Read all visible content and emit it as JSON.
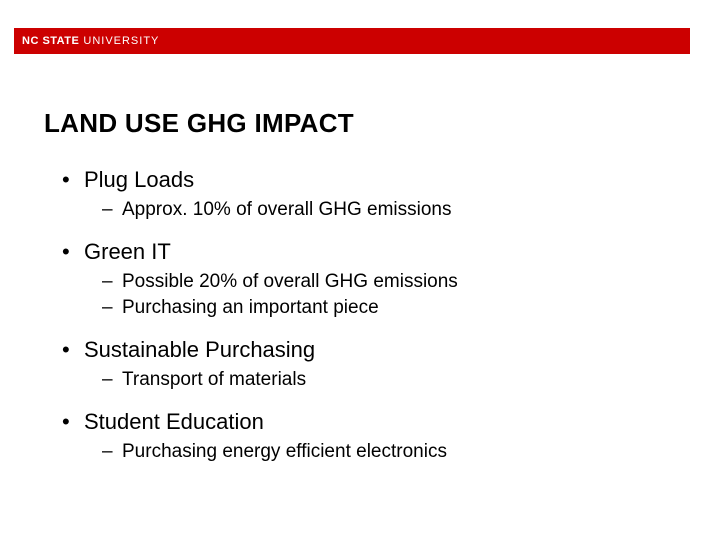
{
  "header": {
    "logo_bold": "NC STATE",
    "logo_light": "UNIVERSITY",
    "bar_color": "#cc0000"
  },
  "title": "LAND USE GHG IMPACT",
  "items": [
    {
      "label": "Plug Loads",
      "subs": [
        "Approx. 10% of overall GHG emissions"
      ]
    },
    {
      "label": "Green IT",
      "subs": [
        "Possible 20% of overall GHG emissions",
        "Purchasing an important piece"
      ]
    },
    {
      "label": "Sustainable Purchasing",
      "subs": [
        "Transport of materials"
      ]
    },
    {
      "label": "Student Education",
      "subs": [
        "Purchasing energy efficient electronics"
      ]
    }
  ],
  "colors": {
    "background": "#ffffff",
    "text": "#000000",
    "accent": "#cc0000"
  },
  "typography": {
    "title_fontsize": 26,
    "l1_fontsize": 22,
    "l2_fontsize": 19,
    "font_family": "Arial"
  }
}
